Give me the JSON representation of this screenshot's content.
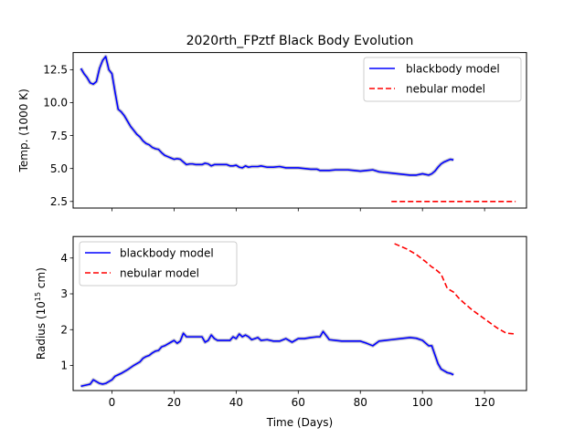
{
  "chart_data": [
    {
      "type": "line",
      "title": "2020rth_FPztf Black Body Evolution",
      "xlabel": "",
      "ylabel": "Temp. (1000 K)",
      "xlim": [
        -12.5,
        133.5
      ],
      "ylim": [
        2.0,
        13.8
      ],
      "xticks": [
        0,
        20,
        40,
        60,
        80,
        100,
        120
      ],
      "yticks": [
        2.5,
        5.0,
        7.5,
        10.0,
        12.5
      ],
      "ytick_labels": [
        "2.5",
        "5.0",
        "7.5",
        "10.0",
        "12.5"
      ],
      "legend_position": "upper right",
      "series": [
        {
          "name": "blackbody model",
          "color": "#0000ff",
          "style": "solid",
          "x": [
            -10,
            -9,
            -8,
            -7,
            -6,
            -5,
            -4,
            -3,
            -2,
            -1,
            0,
            1,
            2,
            3,
            4,
            5,
            6,
            7,
            8,
            9,
            10,
            11,
            12,
            13,
            14,
            15,
            16,
            17,
            18,
            19,
            20,
            21,
            22,
            23,
            24,
            25,
            26,
            27,
            28,
            29,
            30,
            31,
            32,
            33,
            34,
            35,
            36,
            37,
            38,
            39,
            40,
            41,
            42,
            43,
            44,
            45,
            46,
            47,
            48,
            50,
            52,
            54,
            56,
            58,
            60,
            62,
            64,
            66,
            67,
            68,
            70,
            72,
            74,
            76,
            78,
            80,
            82,
            84,
            86,
            88,
            90,
            92,
            94,
            96,
            98,
            100,
            102,
            103,
            104,
            105,
            106,
            107,
            108,
            109,
            110
          ],
          "y": [
            12.6,
            12.2,
            11.9,
            11.5,
            11.4,
            11.6,
            12.6,
            13.2,
            13.5,
            12.5,
            12.2,
            10.8,
            9.5,
            9.3,
            9.0,
            8.6,
            8.2,
            7.9,
            7.6,
            7.4,
            7.1,
            6.9,
            6.8,
            6.6,
            6.5,
            6.45,
            6.2,
            6.0,
            5.9,
            5.8,
            5.7,
            5.75,
            5.7,
            5.5,
            5.3,
            5.35,
            5.35,
            5.3,
            5.3,
            5.3,
            5.4,
            5.35,
            5.2,
            5.3,
            5.3,
            5.3,
            5.3,
            5.3,
            5.2,
            5.2,
            5.25,
            5.1,
            5.05,
            5.2,
            5.1,
            5.15,
            5.15,
            5.15,
            5.2,
            5.1,
            5.1,
            5.15,
            5.05,
            5.05,
            5.05,
            5.0,
            4.95,
            4.95,
            4.85,
            4.85,
            4.85,
            4.9,
            4.9,
            4.9,
            4.85,
            4.8,
            4.85,
            4.9,
            4.75,
            4.7,
            4.65,
            4.6,
            4.55,
            4.5,
            4.5,
            4.6,
            4.5,
            4.6,
            4.8,
            5.1,
            5.35,
            5.5,
            5.6,
            5.7,
            5.65
          ]
        },
        {
          "name": "nebular model",
          "color": "#ff0000",
          "style": "dashed",
          "x": [
            90,
            130
          ],
          "y": [
            2.5,
            2.5
          ]
        }
      ]
    },
    {
      "type": "line",
      "title": "",
      "xlabel": "Time (Days)",
      "ylabel": "Radius (10",
      "ylabel_sup": "15",
      "ylabel_tail": " cm)",
      "xlim": [
        -12.5,
        133.5
      ],
      "ylim": [
        0.3,
        4.6
      ],
      "xticks": [
        0,
        20,
        40,
        60,
        80,
        100,
        120
      ],
      "xtick_labels": [
        "0",
        "20",
        "40",
        "60",
        "80",
        "100",
        "120"
      ],
      "yticks": [
        1,
        2,
        3,
        4
      ],
      "ytick_labels": [
        "1",
        "2",
        "3",
        "4"
      ],
      "legend_position": "upper left",
      "series": [
        {
          "name": "blackbody model",
          "color": "#0000ff",
          "style": "solid",
          "x": [
            -10,
            -9,
            -8,
            -7,
            -6,
            -5,
            -4,
            -3,
            -2,
            -1,
            0,
            1,
            2,
            3,
            4,
            5,
            6,
            7,
            8,
            9,
            10,
            11,
            12,
            13,
            14,
            15,
            16,
            17,
            18,
            19,
            20,
            21,
            22,
            23,
            24,
            25,
            26,
            27,
            28,
            29,
            30,
            31,
            32,
            33,
            34,
            35,
            36,
            37,
            38,
            39,
            40,
            41,
            42,
            43,
            44,
            45,
            46,
            47,
            48,
            50,
            52,
            54,
            56,
            58,
            60,
            62,
            64,
            66,
            67,
            68,
            70,
            72,
            74,
            76,
            78,
            80,
            82,
            84,
            86,
            88,
            90,
            92,
            94,
            96,
            98,
            100,
            102,
            103,
            104,
            105,
            106,
            107,
            108,
            109,
            110
          ],
          "y": [
            0.42,
            0.44,
            0.46,
            0.48,
            0.6,
            0.55,
            0.5,
            0.48,
            0.5,
            0.55,
            0.6,
            0.7,
            0.74,
            0.78,
            0.83,
            0.88,
            0.94,
            1.0,
            1.05,
            1.1,
            1.2,
            1.25,
            1.28,
            1.35,
            1.4,
            1.42,
            1.52,
            1.55,
            1.6,
            1.65,
            1.7,
            1.62,
            1.68,
            1.9,
            1.8,
            1.8,
            1.8,
            1.8,
            1.8,
            1.8,
            1.65,
            1.7,
            1.85,
            1.75,
            1.7,
            1.7,
            1.7,
            1.7,
            1.7,
            1.8,
            1.75,
            1.88,
            1.8,
            1.85,
            1.8,
            1.72,
            1.75,
            1.78,
            1.7,
            1.72,
            1.68,
            1.68,
            1.75,
            1.65,
            1.75,
            1.75,
            1.78,
            1.8,
            1.8,
            1.95,
            1.72,
            1.7,
            1.68,
            1.68,
            1.68,
            1.68,
            1.62,
            1.55,
            1.68,
            1.7,
            1.72,
            1.74,
            1.76,
            1.78,
            1.76,
            1.7,
            1.55,
            1.55,
            1.3,
            1.05,
            0.9,
            0.85,
            0.8,
            0.78,
            0.74
          ]
        },
        {
          "name": "nebular model",
          "color": "#ff0000",
          "style": "dashed",
          "x": [
            91,
            95,
            98,
            101,
            103,
            104,
            106,
            107,
            108,
            110,
            112,
            116,
            120,
            124,
            127,
            130
          ],
          "y": [
            4.4,
            4.25,
            4.1,
            3.9,
            3.75,
            3.7,
            3.55,
            3.35,
            3.15,
            3.05,
            2.85,
            2.55,
            2.3,
            2.05,
            1.9,
            1.88
          ]
        }
      ]
    }
  ]
}
